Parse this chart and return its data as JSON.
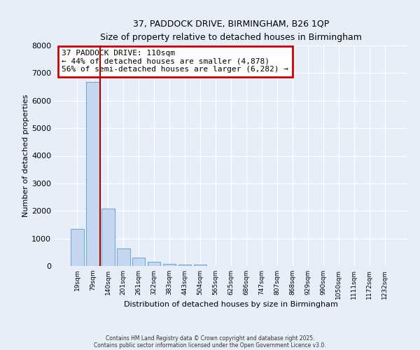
{
  "title_line1": "37, PADDOCK DRIVE, BIRMINGHAM, B26 1QP",
  "title_line2": "Size of property relative to detached houses in Birmingham",
  "xlabel": "Distribution of detached houses by size in Birmingham",
  "ylabel": "Number of detached properties",
  "categories": [
    "19sqm",
    "79sqm",
    "140sqm",
    "201sqm",
    "261sqm",
    "322sqm",
    "383sqm",
    "443sqm",
    "504sqm",
    "565sqm",
    "625sqm",
    "686sqm",
    "747sqm",
    "807sqm",
    "868sqm",
    "929sqm",
    "990sqm",
    "1050sqm",
    "1111sqm",
    "1172sqm",
    "1232sqm"
  ],
  "values": [
    1340,
    6680,
    2090,
    640,
    305,
    155,
    85,
    60,
    50,
    0,
    0,
    0,
    0,
    0,
    0,
    0,
    0,
    0,
    0,
    0,
    0
  ],
  "bar_color": "#c5d8f0",
  "bar_edge_color": "#6fa8d4",
  "vline_color": "#aa0000",
  "annotation_title": "37 PADDOCK DRIVE: 110sqm",
  "annotation_line1": "← 44% of detached houses are smaller (4,878)",
  "annotation_line2": "56% of semi-detached houses are larger (6,282) →",
  "annotation_box_edgecolor": "#cc0000",
  "background_color": "#e8eef8",
  "grid_color": "#ffffff",
  "ylim": [
    0,
    8000
  ],
  "yticks": [
    0,
    1000,
    2000,
    3000,
    4000,
    5000,
    6000,
    7000,
    8000
  ],
  "footer_line1": "Contains HM Land Registry data © Crown copyright and database right 2025.",
  "footer_line2": "Contains public sector information licensed under the Open Government Licence v3.0."
}
